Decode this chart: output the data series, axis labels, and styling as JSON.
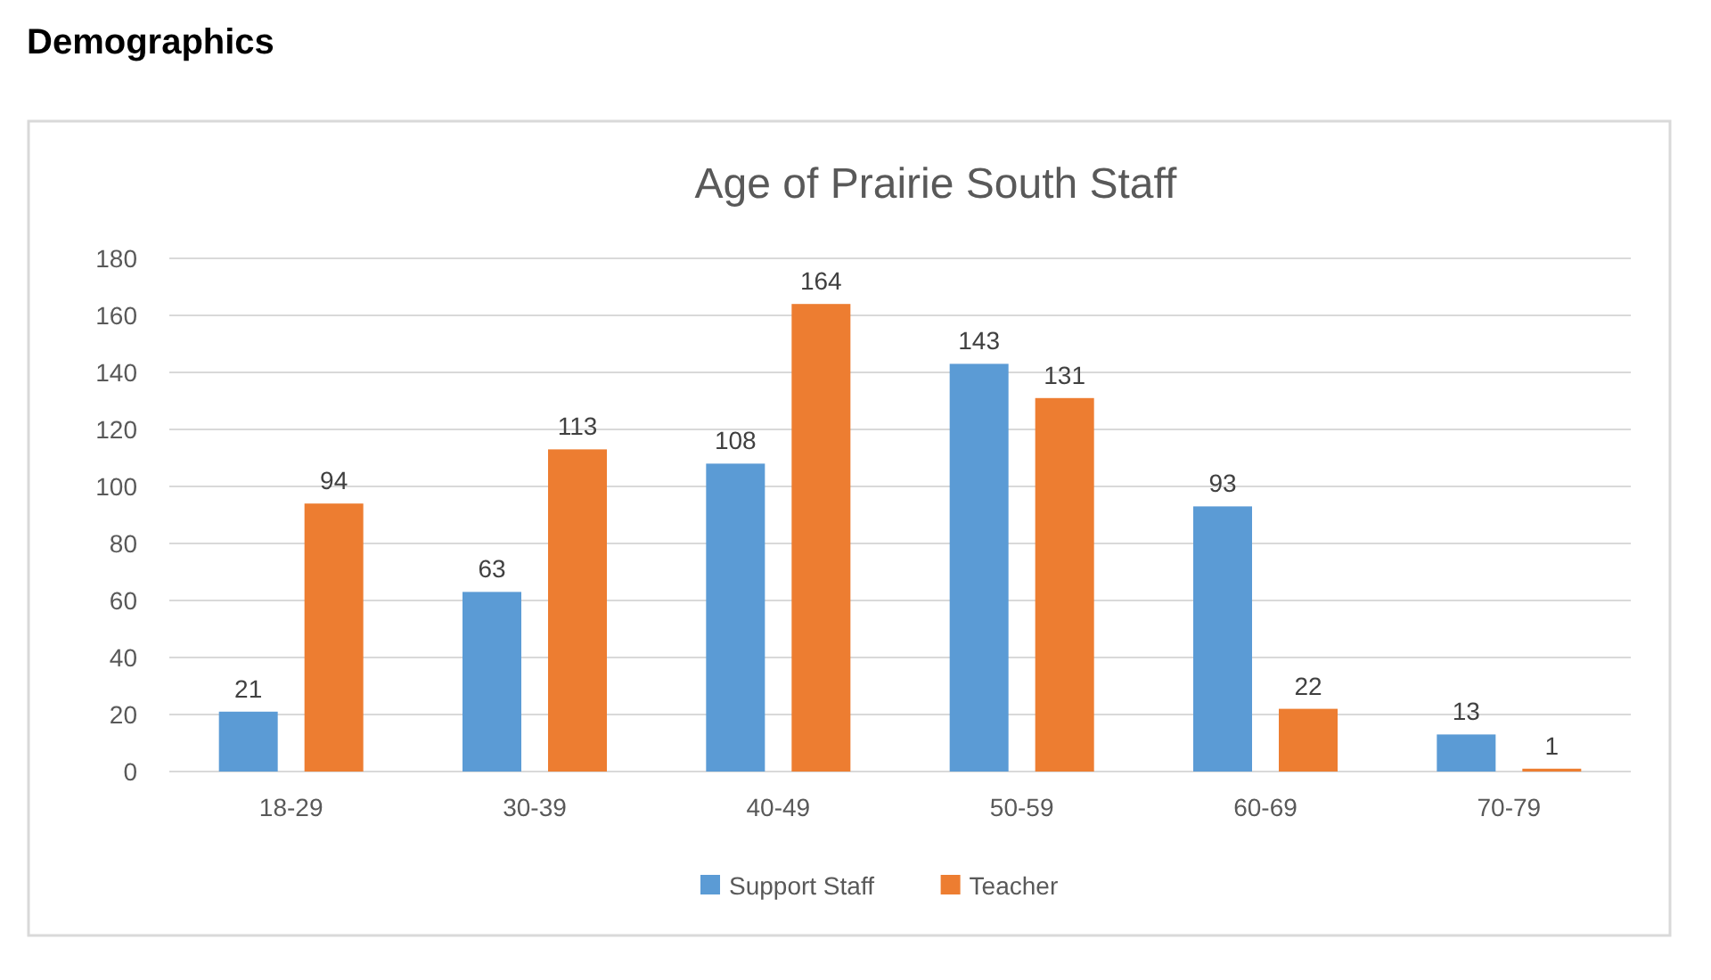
{
  "chart_data": {
    "type": "bar",
    "title": "Demographics",
    "subtitle": "Age of Prairie South Staff",
    "categories": [
      "18-29",
      "30-39",
      "40-49",
      "50-59",
      "60-69",
      "70-79"
    ],
    "series": [
      {
        "name": "Support Staff",
        "color": "#5b9bd5",
        "values": [
          21,
          63,
          108,
          143,
          93,
          13
        ]
      },
      {
        "name": "Teacher",
        "color": "#ed7d31",
        "values": [
          94,
          113,
          164,
          131,
          22,
          1
        ]
      }
    ],
    "ylim": [
      0,
      180
    ],
    "yticks": [
      0,
      20,
      40,
      60,
      80,
      100,
      120,
      140,
      160,
      180
    ],
    "grid": "y",
    "legend": "bottom",
    "data_labels": true
  }
}
